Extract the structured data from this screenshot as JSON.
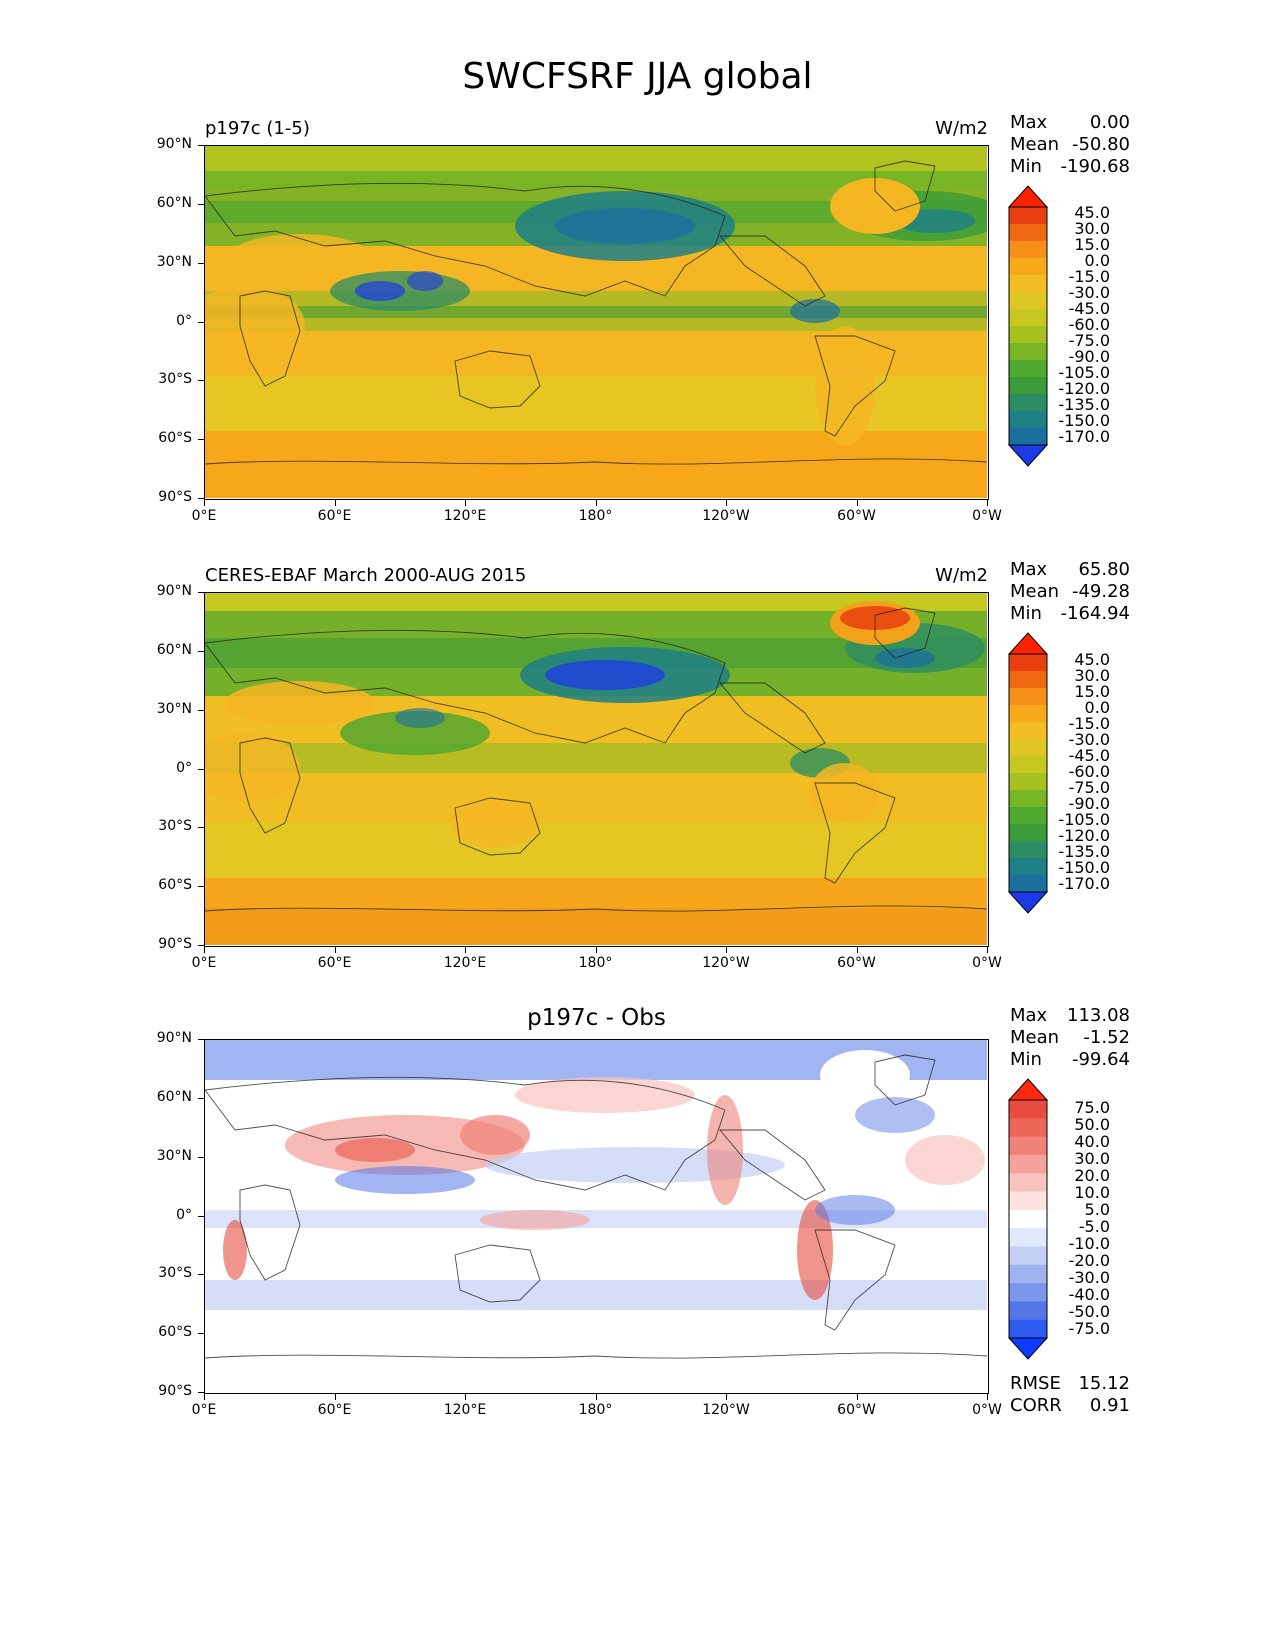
{
  "figure_title": "SWCFSRF JJA global",
  "colormaps": {
    "field": [
      "#1c39e8",
      "#1b6f9f",
      "#1f7f86",
      "#2c8d63",
      "#3b9b38",
      "#4fa92e",
      "#79b626",
      "#a6c11f",
      "#c6c71f",
      "#e0c624",
      "#f1bd22",
      "#f7a91a",
      "#f58f17",
      "#f06a13",
      "#ea3f10",
      "#ff2200"
    ],
    "diff": [
      "#0b3cff",
      "#2f5bf0",
      "#5577e6",
      "#7b95ea",
      "#9fb3ee",
      "#c3cff5",
      "#e1e8fa",
      "#ffffff",
      "#fde1de",
      "#f8c3bd",
      "#f4a29a",
      "#ef8379",
      "#eb6658",
      "#e84c3e",
      "#ff2a10"
    ]
  },
  "colorbar_field_labels": [
    "45.0",
    "30.0",
    "15.0",
    "0.0",
    "-15.0",
    "-30.0",
    "-45.0",
    "-60.0",
    "-75.0",
    "-90.0",
    "-105.0",
    "-120.0",
    "-135.0",
    "-150.0",
    "-170.0"
  ],
  "colorbar_diff_labels": [
    "75.0",
    "50.0",
    "40.0",
    "30.0",
    "20.0",
    "10.0",
    "5.0",
    "-5.0",
    "-10.0",
    "-20.0",
    "-30.0",
    "-40.0",
    "-50.0",
    "-75.0"
  ],
  "axes": {
    "lat_ticks": [
      "90°N",
      "60°N",
      "30°N",
      "0°",
      "30°S",
      "60°S",
      "90°S"
    ],
    "lon_ticks": [
      "0°E",
      "60°E",
      "120°E",
      "180°",
      "120°W",
      "60°W",
      "0°W"
    ]
  },
  "panels": [
    {
      "title": "p197c (1-5)",
      "units": "W/m2",
      "stats": [
        {
          "label": "Max",
          "value": "0.00"
        },
        {
          "label": "Mean",
          "value": "-50.80"
        },
        {
          "label": "Min",
          "value": "-190.68"
        }
      ]
    },
    {
      "title": "CERES-EBAF March 2000-AUG 2015",
      "units": "W/m2",
      "stats": [
        {
          "label": "Max",
          "value": "65.80"
        },
        {
          "label": "Mean",
          "value": "-49.28"
        },
        {
          "label": "Min",
          "value": "-164.94"
        }
      ]
    },
    {
      "title": "p197c - Obs",
      "units": "",
      "stats": [
        {
          "label": "Max",
          "value": "113.08"
        },
        {
          "label": "Mean",
          "value": "-1.52"
        },
        {
          "label": "Min",
          "value": "-99.64"
        }
      ],
      "bottom_stats": [
        {
          "label": "RMSE",
          "value": "15.12"
        },
        {
          "label": "CORR",
          "value": "0.91"
        }
      ]
    }
  ],
  "chart_data": [
    {
      "type": "heatmap",
      "title": "p197c (1-5)",
      "units": "W/m2",
      "x_range": [
        0,
        360
      ],
      "y_range": [
        -90,
        90
      ],
      "levels": [
        -170,
        -150,
        -135,
        -120,
        -105,
        -90,
        -75,
        -60,
        -45,
        -30,
        -15,
        0,
        15,
        30,
        45
      ],
      "color_scale": "field",
      "stats": {
        "max": 0.0,
        "mean": -50.8,
        "min": -190.68
      }
    },
    {
      "type": "heatmap",
      "title": "CERES-EBAF March 2000-AUG 2015",
      "units": "W/m2",
      "x_range": [
        0,
        360
      ],
      "y_range": [
        -90,
        90
      ],
      "levels": [
        -170,
        -150,
        -135,
        -120,
        -105,
        -90,
        -75,
        -60,
        -45,
        -30,
        -15,
        0,
        15,
        30,
        45
      ],
      "color_scale": "field",
      "stats": {
        "max": 65.8,
        "mean": -49.28,
        "min": -164.94
      }
    },
    {
      "type": "heatmap",
      "title": "p197c - Obs",
      "x_range": [
        0,
        360
      ],
      "y_range": [
        -90,
        90
      ],
      "levels": [
        -75,
        -50,
        -40,
        -30,
        -20,
        -10,
        -5,
        5,
        10,
        20,
        30,
        40,
        50,
        75
      ],
      "color_scale": "diff",
      "stats": {
        "max": 113.08,
        "mean": -1.52,
        "min": -99.64,
        "rmse": 15.12,
        "corr": 0.91
      }
    }
  ]
}
